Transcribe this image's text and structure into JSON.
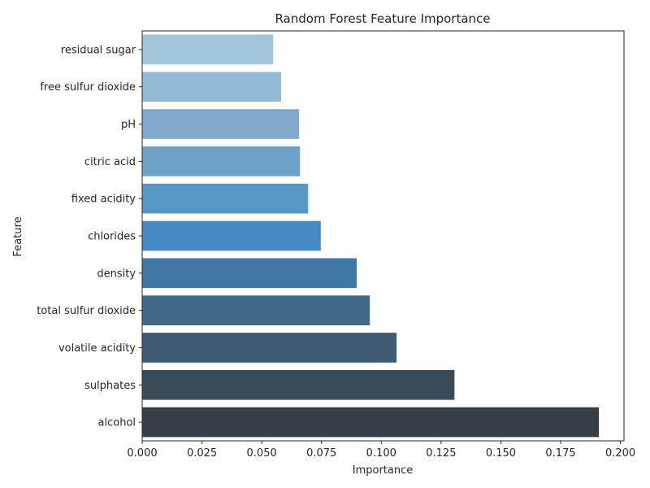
{
  "chart_data": {
    "type": "bar",
    "orientation": "horizontal",
    "title": "Random Forest Feature Importance",
    "xlabel": "Importance",
    "ylabel": "Feature",
    "categories": [
      "residual sugar",
      "free sulfur dioxide",
      "pH",
      "citric acid",
      "fixed acidity",
      "chlorides",
      "density",
      "total sulfur dioxide",
      "volatile acidity",
      "sulphates",
      "alcohol"
    ],
    "values": [
      0.0548,
      0.0581,
      0.0656,
      0.066,
      0.0694,
      0.0747,
      0.0897,
      0.0952,
      0.1064,
      0.1306,
      0.191
    ],
    "xlim": [
      0,
      0.2015
    ],
    "xticks": [
      0.0,
      0.025,
      0.05,
      0.075,
      0.1,
      0.125,
      0.15,
      0.175,
      0.2
    ],
    "xtick_labels": [
      "0.000",
      "0.025",
      "0.050",
      "0.075",
      "0.100",
      "0.125",
      "0.150",
      "0.175",
      "0.200"
    ],
    "grid": false,
    "colors": [
      "#a2c5dc",
      "#92bad6",
      "#7faace",
      "#6ea1c8",
      "#5898c6",
      "#458ac2",
      "#3f78a4",
      "#3f6a8a",
      "#3d5c74",
      "#394b59",
      "#363f45"
    ]
  }
}
